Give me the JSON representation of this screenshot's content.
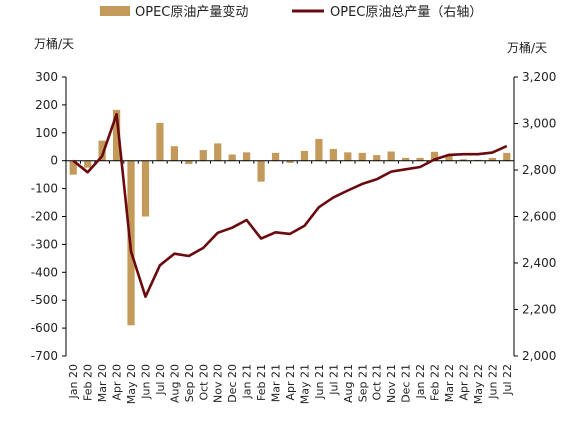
{
  "chart_data": {
    "type": "bar+line",
    "legend": {
      "position": "top",
      "items": [
        {
          "name": "OPEC原油产量变动",
          "kind": "bar",
          "color": "#c49a5a"
        },
        {
          "name": "OPEC原油总产量（右轴）",
          "kind": "line",
          "color": "#6b0a0e"
        }
      ]
    },
    "left_axis": {
      "unit": "万桶/天",
      "min": -700,
      "max": 300,
      "step": 100,
      "ticks": [
        "300",
        "200",
        "100",
        "0",
        "-100",
        "-200",
        "-300",
        "-400",
        "-500",
        "-600",
        "-700"
      ]
    },
    "right_axis": {
      "unit": "万桶/天",
      "min": 2000,
      "max": 3200,
      "step": 200,
      "ticks": [
        "3,200",
        "3,000",
        "2,800",
        "2,600",
        "2,400",
        "2,200",
        "2,000"
      ]
    },
    "categories": [
      "Jan 20",
      "Feb 20",
      "Mar 20",
      "Apr 20",
      "May 20",
      "Jun 20",
      "Jul 20",
      "Aug 20",
      "Sep 20",
      "Oct 20",
      "Nov 20",
      "Dec 20",
      "Jan 21",
      "Feb 21",
      "Mar 21",
      "Apr 21",
      "May 21",
      "Jun 21",
      "Jul 21",
      "Aug 21",
      "Sep 21",
      "Oct 21",
      "Nov 21",
      "Dec 21",
      "Jan 22",
      "Feb 22",
      "Mar 22",
      "Apr 22",
      "May 22",
      "Jun 22",
      "Jul 22"
    ],
    "series": [
      {
        "name": "OPEC原油产量变动",
        "type": "bar",
        "axis": "left",
        "values": [
          -50,
          -25,
          72,
          182,
          -590,
          -200,
          135,
          52,
          -12,
          38,
          62,
          22,
          30,
          -75,
          28,
          -8,
          35,
          78,
          42,
          30,
          28,
          20,
          33,
          10,
          10,
          32,
          18,
          5,
          3,
          10,
          28
        ]
      },
      {
        "name": "OPEC原油总产量（右轴）",
        "type": "line",
        "axis": "right",
        "values": [
          2840,
          2790,
          2860,
          3040,
          2450,
          2255,
          2390,
          2440,
          2430,
          2465,
          2530,
          2552,
          2585,
          2505,
          2532,
          2525,
          2560,
          2640,
          2682,
          2712,
          2740,
          2760,
          2793,
          2803,
          2813,
          2845,
          2865,
          2868,
          2868,
          2875,
          2903
        ]
      }
    ]
  }
}
